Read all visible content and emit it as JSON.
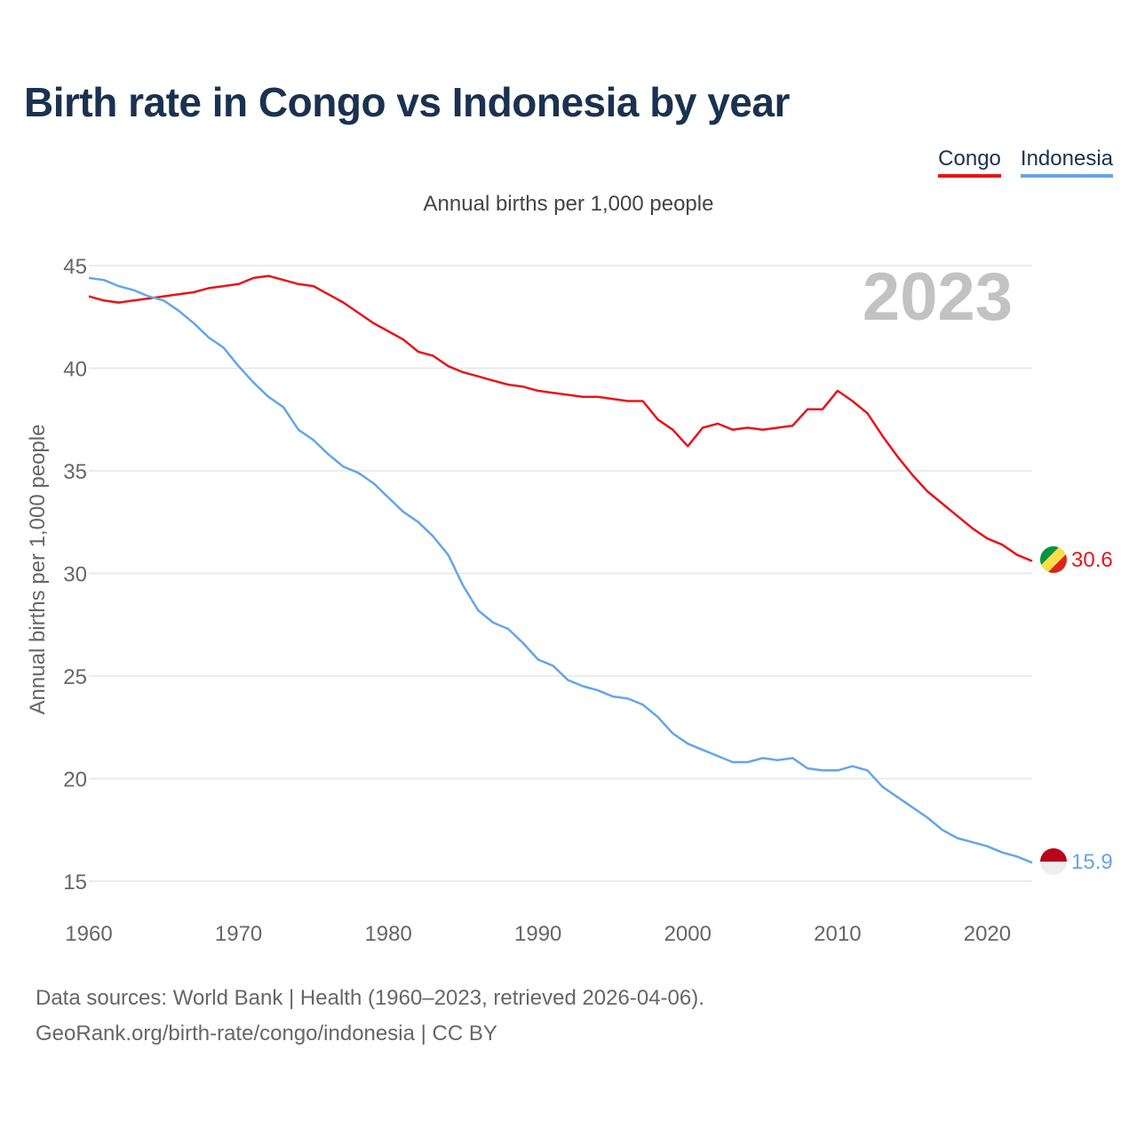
{
  "title": "Birth rate in Congo vs Indonesia by year",
  "legend": {
    "items": [
      {
        "label": "Congo",
        "color": "#e8141a"
      },
      {
        "label": "Indonesia",
        "color": "#63a6e8"
      }
    ]
  },
  "colors": {
    "grid": "#e6e6e6",
    "axis_text": "#666666",
    "year": "#c2c2c2"
  },
  "source": {
    "line1": "Data sources: World Bank | Health (1960–2023, retrieved 2026-04-06).",
    "line2": "GeoRank.org/birth-rate/congo/indonesia | CC BY"
  },
  "chart_data": {
    "type": "line",
    "title": "Annual births per 1,000 people",
    "xlabel": "",
    "ylabel": "Annual births per 1,000 people",
    "year_label": "2023",
    "xlim": [
      1960,
      2023
    ],
    "ylim": [
      15,
      45
    ],
    "xticks": [
      1960,
      1970,
      1980,
      1990,
      2000,
      2010,
      2020
    ],
    "yticks": [
      15,
      20,
      25,
      30,
      35,
      40,
      45
    ],
    "x": [
      1960,
      1961,
      1962,
      1963,
      1964,
      1965,
      1966,
      1967,
      1968,
      1969,
      1970,
      1971,
      1972,
      1973,
      1974,
      1975,
      1976,
      1977,
      1978,
      1979,
      1980,
      1981,
      1982,
      1983,
      1984,
      1985,
      1986,
      1987,
      1988,
      1989,
      1990,
      1991,
      1992,
      1993,
      1994,
      1995,
      1996,
      1997,
      1998,
      1999,
      2000,
      2001,
      2002,
      2003,
      2004,
      2005,
      2006,
      2007,
      2008,
      2009,
      2010,
      2011,
      2012,
      2013,
      2014,
      2015,
      2016,
      2017,
      2018,
      2019,
      2020,
      2021,
      2022,
      2023
    ],
    "series": [
      {
        "name": "Congo",
        "color": "#e8141a",
        "end_label": "30.6",
        "values": [
          43.5,
          43.3,
          43.2,
          43.3,
          43.4,
          43.5,
          43.6,
          43.7,
          43.9,
          44.0,
          44.1,
          44.4,
          44.5,
          44.3,
          44.1,
          44.0,
          43.6,
          43.2,
          42.7,
          42.2,
          41.8,
          41.4,
          40.8,
          40.6,
          40.1,
          39.8,
          39.6,
          39.4,
          39.2,
          39.1,
          38.9,
          38.8,
          38.7,
          38.6,
          38.6,
          38.5,
          38.4,
          38.4,
          37.5,
          37.0,
          36.2,
          37.1,
          37.3,
          37.0,
          37.1,
          37.0,
          37.1,
          37.2,
          38.0,
          38.0,
          38.9,
          38.4,
          37.8,
          36.7,
          35.7,
          34.8,
          34.0,
          33.4,
          32.8,
          32.2,
          31.7,
          31.4,
          30.9,
          30.6
        ]
      },
      {
        "name": "Indonesia",
        "color": "#63a6e8",
        "end_label": "15.9",
        "values": [
          44.4,
          44.3,
          44.0,
          43.8,
          43.5,
          43.3,
          42.8,
          42.2,
          41.5,
          41.0,
          40.1,
          39.3,
          38.6,
          38.1,
          37.0,
          36.5,
          35.8,
          35.2,
          34.9,
          34.4,
          33.7,
          33.0,
          32.5,
          31.8,
          30.9,
          29.4,
          28.2,
          27.6,
          27.3,
          26.6,
          25.8,
          25.5,
          24.8,
          24.5,
          24.3,
          24.0,
          23.9,
          23.6,
          23.0,
          22.2,
          21.7,
          21.4,
          21.1,
          20.8,
          20.8,
          21.0,
          20.9,
          21.0,
          20.5,
          20.4,
          20.4,
          20.6,
          20.4,
          19.6,
          19.1,
          18.6,
          18.1,
          17.5,
          17.1,
          16.9,
          16.7,
          16.4,
          16.2,
          15.9
        ]
      }
    ]
  }
}
